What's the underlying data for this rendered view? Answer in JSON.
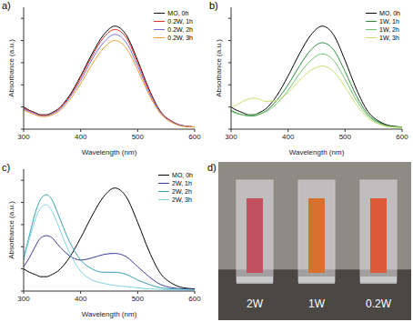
{
  "chart_data": [
    {
      "type": "line",
      "title": "a)",
      "x_label": "Wavelength (nm)",
      "y_label": "Absorbance (a.u.)",
      "x": [
        300,
        310,
        320,
        330,
        340,
        350,
        360,
        380,
        400,
        420,
        440,
        460,
        480,
        500,
        520,
        540,
        560,
        580,
        600
      ],
      "xlim": [
        300,
        600
      ],
      "xticks": [
        300,
        400,
        500,
        600
      ],
      "ylim": [
        0,
        1.1
      ],
      "yticks": [
        0,
        0.2,
        0.4,
        0.6,
        0.8,
        1
      ],
      "tick_labels": "x",
      "legend": "upper right",
      "series": [
        {
          "name": "MO, 0h",
          "color": "#000000",
          "values": [
            0.2,
            0.17,
            0.15,
            0.13,
            0.13,
            0.15,
            0.18,
            0.3,
            0.48,
            0.68,
            0.85,
            0.93,
            0.85,
            0.62,
            0.36,
            0.16,
            0.07,
            0.03,
            0.02
          ]
        },
        {
          "name": "0.2W, 1h",
          "color": "#e0302a",
          "values": [
            0.19,
            0.165,
            0.145,
            0.125,
            0.125,
            0.145,
            0.175,
            0.29,
            0.465,
            0.66,
            0.825,
            0.9,
            0.825,
            0.6,
            0.35,
            0.155,
            0.07,
            0.03,
            0.02
          ]
        },
        {
          "name": "0.2W, 2h",
          "color": "#7b6fe0",
          "values": [
            0.18,
            0.16,
            0.14,
            0.12,
            0.12,
            0.14,
            0.165,
            0.28,
            0.44,
            0.63,
            0.78,
            0.855,
            0.78,
            0.57,
            0.33,
            0.15,
            0.065,
            0.03,
            0.02
          ]
        },
        {
          "name": "0.2W, 3h",
          "color": "#f0a030",
          "values": [
            0.17,
            0.15,
            0.13,
            0.115,
            0.115,
            0.13,
            0.155,
            0.26,
            0.41,
            0.585,
            0.73,
            0.8,
            0.73,
            0.535,
            0.31,
            0.14,
            0.06,
            0.025,
            0.02
          ]
        }
      ]
    },
    {
      "type": "line",
      "title": "b)",
      "x_label": "Wavelength (nm)",
      "y_label": "Absorbance (a.u.)",
      "x": [
        300,
        310,
        320,
        330,
        340,
        350,
        360,
        380,
        400,
        420,
        440,
        460,
        480,
        500,
        520,
        540,
        560,
        580,
        600
      ],
      "xlim": [
        300,
        600
      ],
      "xticks": [
        300,
        400,
        500,
        600
      ],
      "ylim": [
        0,
        1.1
      ],
      "yticks": [
        0,
        0.2,
        0.4,
        0.6,
        0.8,
        1
      ],
      "tick_labels": "x",
      "legend": "upper right",
      "series": [
        {
          "name": "MO, 0h",
          "color": "#000000",
          "values": [
            0.2,
            0.17,
            0.15,
            0.13,
            0.13,
            0.15,
            0.18,
            0.3,
            0.48,
            0.68,
            0.85,
            0.93,
            0.85,
            0.62,
            0.36,
            0.16,
            0.07,
            0.03,
            0.02
          ]
        },
        {
          "name": "1W, 1h",
          "color": "#2e8b3a",
          "values": [
            0.17,
            0.145,
            0.13,
            0.12,
            0.12,
            0.135,
            0.16,
            0.26,
            0.4,
            0.57,
            0.715,
            0.78,
            0.715,
            0.52,
            0.3,
            0.135,
            0.06,
            0.025,
            0.02
          ]
        },
        {
          "name": "1W, 2h",
          "color": "#6cc86c",
          "values": [
            0.16,
            0.14,
            0.13,
            0.125,
            0.13,
            0.14,
            0.155,
            0.23,
            0.35,
            0.5,
            0.62,
            0.68,
            0.62,
            0.45,
            0.26,
            0.12,
            0.05,
            0.02,
            0.015
          ]
        },
        {
          "name": "1W, 3h",
          "color": "#c8e070",
          "values": [
            0.2,
            0.22,
            0.25,
            0.27,
            0.28,
            0.27,
            0.25,
            0.26,
            0.33,
            0.44,
            0.53,
            0.57,
            0.52,
            0.38,
            0.22,
            0.1,
            0.045,
            0.02,
            0.015
          ]
        }
      ]
    },
    {
      "type": "line",
      "title": "c)",
      "x_label": "Wavelength (nm)",
      "y_label": "Absorbance (a.u.)",
      "x": [
        300,
        310,
        320,
        330,
        340,
        350,
        360,
        380,
        400,
        420,
        440,
        460,
        480,
        500,
        520,
        540,
        560,
        580,
        600
      ],
      "xlim": [
        300,
        600
      ],
      "xticks": [
        300,
        400,
        500,
        600
      ],
      "ylim": [
        0,
        1.1
      ],
      "yticks": [
        0,
        0.2,
        0.4,
        0.6,
        0.8,
        1
      ],
      "tick_labels": "x",
      "legend": "upper right",
      "series": [
        {
          "name": "MO, 0h",
          "color": "#000000",
          "values": [
            0.2,
            0.17,
            0.15,
            0.13,
            0.13,
            0.15,
            0.18,
            0.3,
            0.48,
            0.68,
            0.85,
            0.93,
            0.85,
            0.62,
            0.36,
            0.16,
            0.07,
            0.03,
            0.02
          ]
        },
        {
          "name": "2W, 1h",
          "color": "#3a3a9a",
          "values": [
            0.22,
            0.3,
            0.4,
            0.48,
            0.5,
            0.48,
            0.42,
            0.32,
            0.28,
            0.3,
            0.33,
            0.34,
            0.31,
            0.22,
            0.13,
            0.06,
            0.03,
            0.02,
            0.015
          ]
        },
        {
          "name": "2W, 2h",
          "color": "#3aa0b0",
          "values": [
            0.3,
            0.5,
            0.7,
            0.83,
            0.87,
            0.82,
            0.7,
            0.45,
            0.28,
            0.2,
            0.17,
            0.17,
            0.15,
            0.1,
            0.06,
            0.03,
            0.02,
            0.015,
            0.01
          ]
        },
        {
          "name": "2W, 3h",
          "color": "#80d4e0",
          "values": [
            0.28,
            0.47,
            0.64,
            0.75,
            0.78,
            0.72,
            0.6,
            0.35,
            0.18,
            0.1,
            0.07,
            0.05,
            0.04,
            0.03,
            0.02,
            0.015,
            0.01,
            0.01,
            0.01
          ]
        }
      ]
    }
  ],
  "photo": {
    "label": "d)",
    "background": "#8e8a84",
    "cuvettes": [
      {
        "label": "2W",
        "color": "#c2505e"
      },
      {
        "label": "1W",
        "color": "#d8702e"
      },
      {
        "label": "0.2W",
        "color": "#dc5a38"
      }
    ]
  }
}
